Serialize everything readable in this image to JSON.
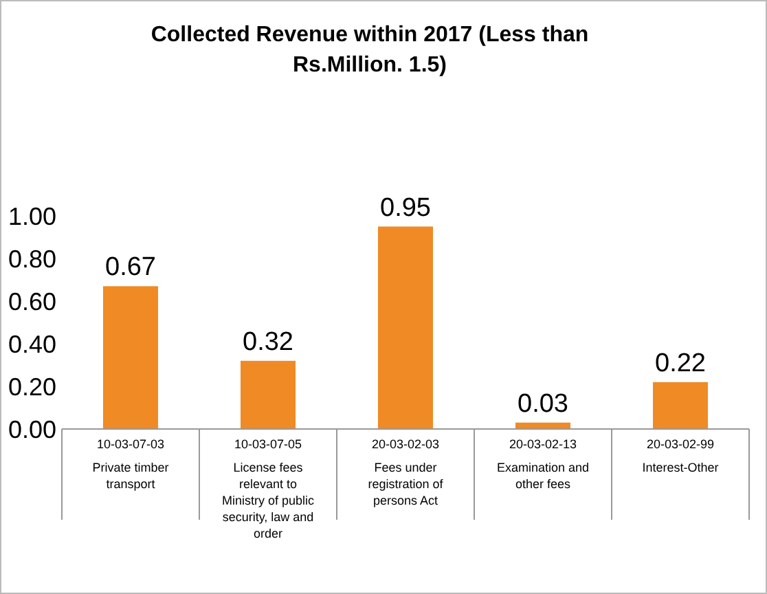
{
  "chart_data": {
    "type": "bar",
    "title": "Collected Revenue within 2017 (Less than Rs.Million. 1.5)",
    "categories": [
      "10-03-07-03\nPrivate timber transport",
      "10-03-07-05\nLicense fees relevant to Ministry of public security, law and order",
      "20-03-02-03\nFees under registration of persons Act",
      "20-03-02-13\nExamination and other fees",
      "20-03-02-99\nInterest-Other"
    ],
    "values": [
      0.67,
      0.32,
      0.95,
      0.03,
      0.22
    ],
    "value_labels": [
      "0.67",
      "0.32",
      "0.95",
      "0.03",
      "0.22"
    ],
    "color": "#f08a24",
    "ylim": [
      0,
      1
    ],
    "yticks": [
      {
        "value": 0,
        "label": "0.00"
      },
      {
        "value": 0.2,
        "label": "0.20"
      },
      {
        "value": 0.4,
        "label": "0.40"
      },
      {
        "value": 0.6,
        "label": "0.60"
      },
      {
        "value": 0.8,
        "label": "0.80"
      },
      {
        "value": 1,
        "label": "1.00"
      }
    ],
    "grid": false
  }
}
